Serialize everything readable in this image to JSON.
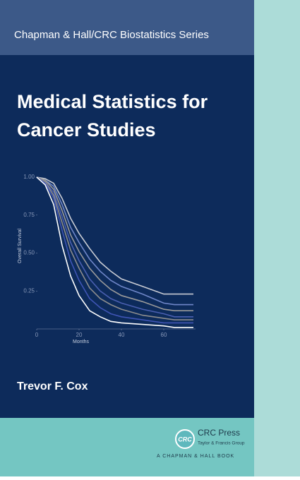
{
  "series_title": "Chapman & Hall/CRC Biostatistics Series",
  "title_lines": [
    "Medical Statistics for",
    "Cancer Studies"
  ],
  "author": "Trevor F. Cox",
  "publisher": {
    "logo": "CRC",
    "name": "CRC Press",
    "tagline": "Taylor & Francis Group",
    "imprint": "A CHAPMAN & HALL BOOK"
  },
  "chart_data": {
    "type": "line",
    "xlabel": "Months",
    "ylabel": "Overall Survival",
    "x": [
      0,
      4,
      8,
      12,
      16,
      20,
      25,
      30,
      35,
      40,
      50,
      60,
      65,
      74
    ],
    "series": [
      {
        "color": "#c9ccd4",
        "values": [
          1,
          0.99,
          0.96,
          0.86,
          0.73,
          0.63,
          0.53,
          0.44,
          0.38,
          0.33,
          0.28,
          0.23,
          0.23,
          0.23
        ]
      },
      {
        "color": "#6f86c8",
        "values": [
          1,
          0.98,
          0.94,
          0.82,
          0.67,
          0.57,
          0.46,
          0.38,
          0.32,
          0.28,
          0.23,
          0.17,
          0.16,
          0.16
        ]
      },
      {
        "color": "#9a9a9a",
        "values": [
          1,
          0.98,
          0.92,
          0.78,
          0.62,
          0.51,
          0.4,
          0.32,
          0.26,
          0.22,
          0.18,
          0.13,
          0.12,
          0.12
        ]
      },
      {
        "color": "#4a5fb0",
        "values": [
          1,
          0.97,
          0.9,
          0.74,
          0.57,
          0.45,
          0.33,
          0.25,
          0.2,
          0.17,
          0.13,
          0.1,
          0.08,
          0.08
        ]
      },
      {
        "color": "#8d8d8d",
        "values": [
          1,
          0.97,
          0.88,
          0.7,
          0.52,
          0.4,
          0.27,
          0.2,
          0.16,
          0.13,
          0.09,
          0.07,
          0.06,
          0.06
        ]
      },
      {
        "color": "#3f55b5",
        "values": [
          1,
          0.96,
          0.86,
          0.65,
          0.45,
          0.32,
          0.2,
          0.14,
          0.1,
          0.08,
          0.06,
          0.04,
          0.04,
          0.04
        ]
      },
      {
        "color": "#ffffff",
        "values": [
          1,
          0.95,
          0.82,
          0.55,
          0.35,
          0.22,
          0.12,
          0.08,
          0.05,
          0.04,
          0.03,
          0.02,
          0.01,
          0.01
        ]
      }
    ],
    "xlim": [
      0,
      75
    ],
    "ylim": [
      0,
      1
    ],
    "xticks": [
      0,
      20,
      40,
      60
    ],
    "yticks": [
      0.25,
      {
        "value": 0.5,
        "label": "0.50"
      },
      0.75,
      {
        "value": 1,
        "label": "1.00"
      }
    ]
  }
}
